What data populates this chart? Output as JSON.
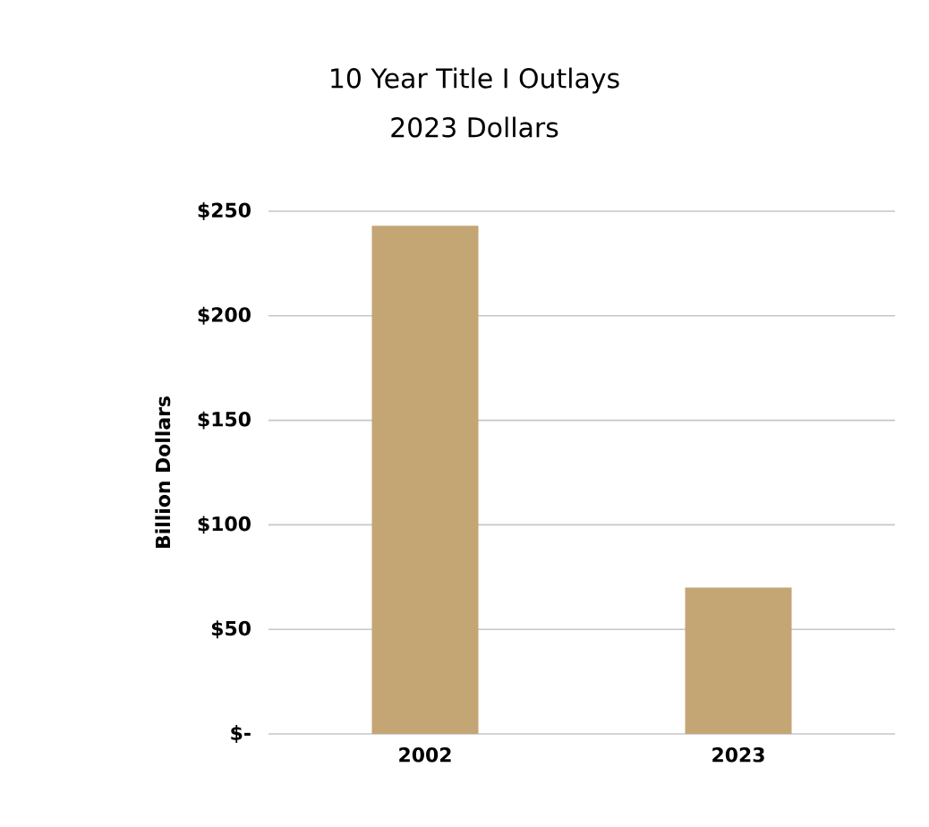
{
  "chart_data": {
    "type": "bar",
    "title": "10 Year Title I Outlays",
    "subtitle": "2023 Dollars",
    "ylabel": "Billion Dollars",
    "categories": [
      "2002",
      "2023"
    ],
    "values": [
      243,
      70
    ],
    "color": "#c4a574",
    "ylim": [
      0,
      250
    ],
    "yticks": [
      {
        "value": 0,
        "label": "$-"
      },
      {
        "value": 50,
        "label": "$50"
      },
      {
        "value": 100,
        "label": "$100"
      },
      {
        "value": 150,
        "label": "$150"
      },
      {
        "value": 200,
        "label": "$200"
      },
      {
        "value": 250,
        "label": "$250"
      }
    ],
    "grid": "y"
  }
}
